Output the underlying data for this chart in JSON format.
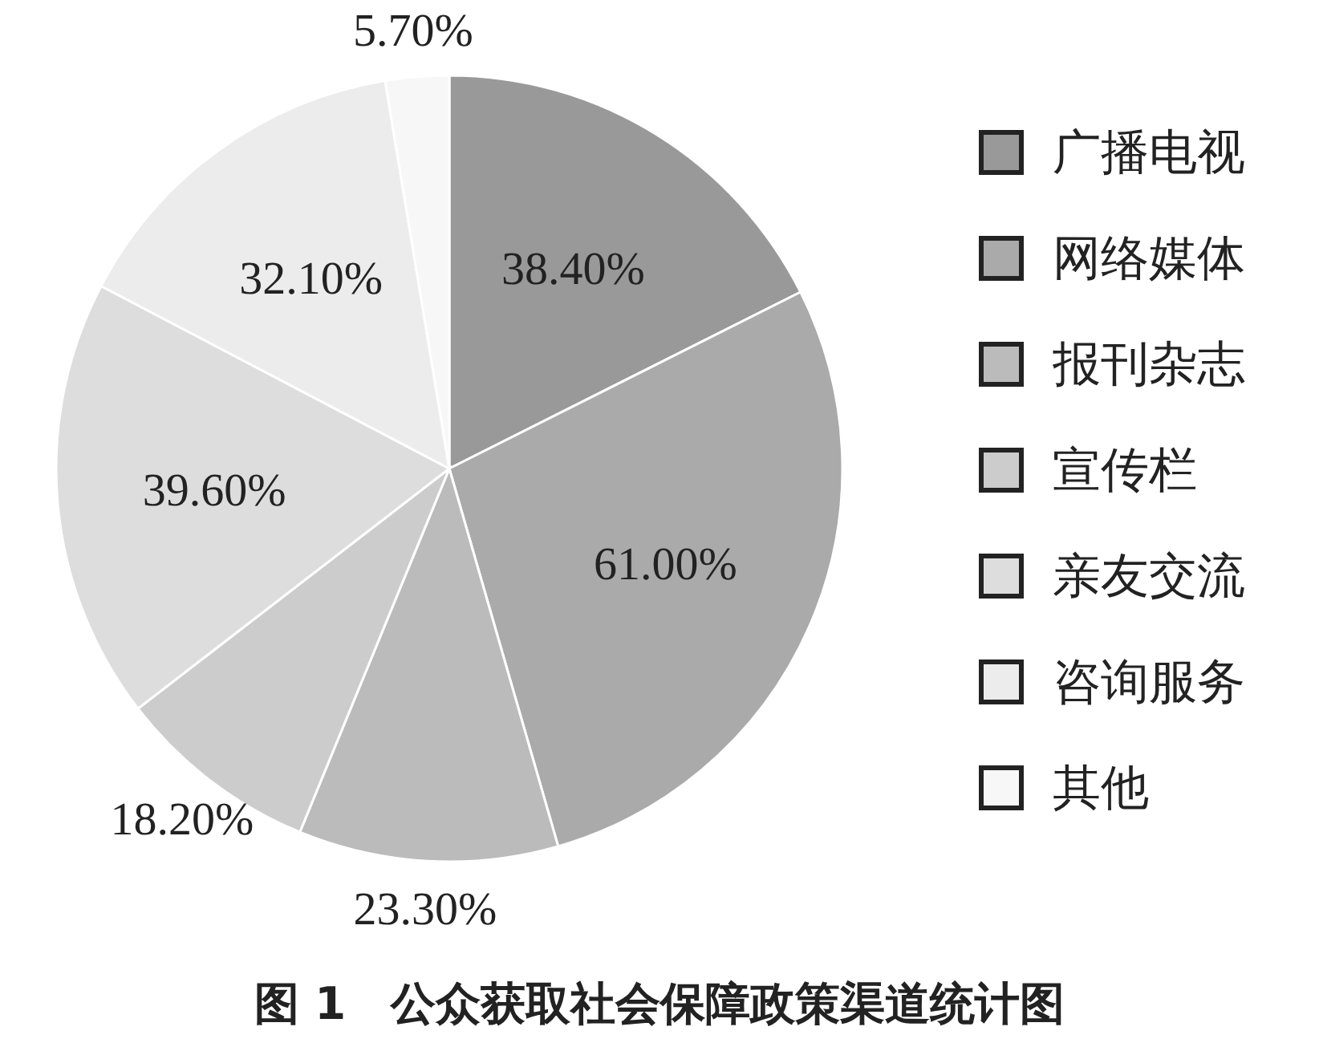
{
  "chart_data": {
    "type": "pie",
    "title": "图 1　公众获取社会保障政策渠道统计图",
    "categories": [
      "广播电视",
      "网络媒体",
      "报刊杂志",
      "宣传栏",
      "亲友交流",
      "咨询服务",
      "其他"
    ],
    "values": [
      38.4,
      61.0,
      23.3,
      18.2,
      39.6,
      32.1,
      5.7
    ],
    "colors": [
      "#999999",
      "#aaaaaa",
      "#bbbbbb",
      "#cccccc",
      "#dddddd",
      "#ececec",
      "#f7f7f7"
    ],
    "value_labels": [
      "38.40%",
      "61.00%",
      "23.30%",
      "18.20%",
      "39.60%",
      "32.10%",
      "5.70%"
    ],
    "legend": "right"
  }
}
